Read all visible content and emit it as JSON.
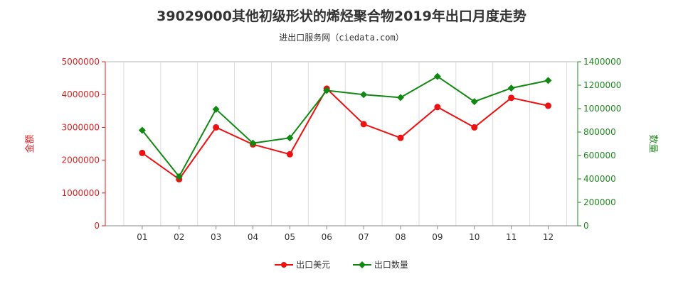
{
  "chart_data": {
    "type": "line",
    "title": "39029000其他初级形状的烯烃聚合物2019年出口月度走势",
    "subtitle": "进出口服务网（ciedata.com）",
    "categories": [
      "01",
      "02",
      "03",
      "04",
      "05",
      "06",
      "07",
      "08",
      "09",
      "10",
      "11",
      "12"
    ],
    "series": [
      {
        "name": "出口美元",
        "axis": "left",
        "color": "#ee1111",
        "marker": "circle",
        "values": [
          2220000,
          1420000,
          3000000,
          2480000,
          2180000,
          4180000,
          3100000,
          2680000,
          3620000,
          3000000,
          3900000,
          3660000
        ]
      },
      {
        "name": "出口数量",
        "axis": "right",
        "color": "#118811",
        "marker": "diamond",
        "values": [
          815000,
          420000,
          995000,
          705000,
          750000,
          1155000,
          1120000,
          1095000,
          1275000,
          1060000,
          1175000,
          1240000
        ]
      }
    ],
    "y_left": {
      "label": "金额",
      "range": [
        0,
        5000000
      ],
      "ticks": [
        "0",
        "1000000",
        "2000000",
        "3000000",
        "4000000",
        "5000000"
      ],
      "color": "#dd2222"
    },
    "y_right": {
      "label": "数量",
      "range": [
        0,
        1400000
      ],
      "ticks": [
        "0",
        "200000",
        "400000",
        "600000",
        "800000",
        "1000000",
        "1200000",
        "1400000"
      ],
      "color": "#228822"
    },
    "grid": "vertical",
    "legend_position": "bottom"
  }
}
